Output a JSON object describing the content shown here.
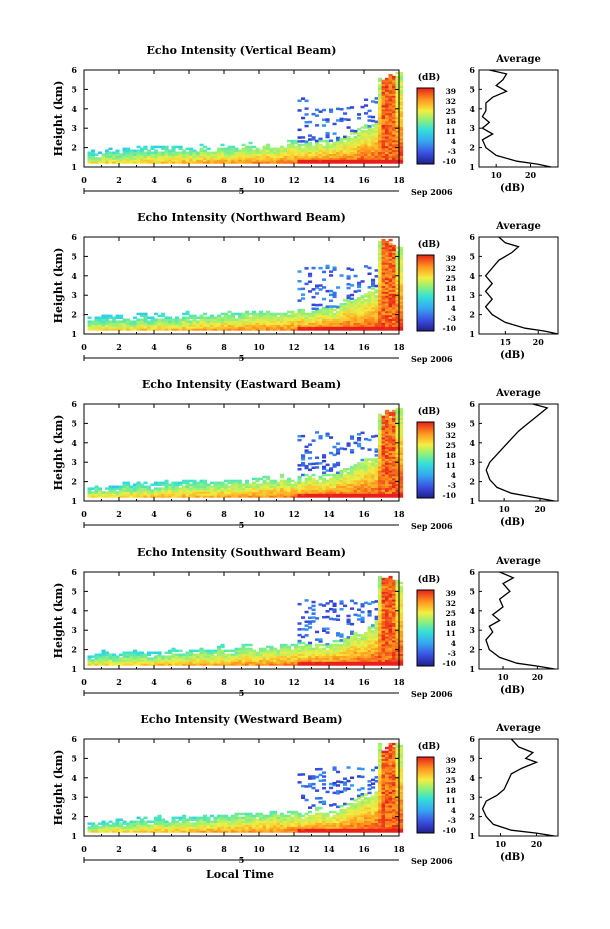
{
  "common": {
    "xlabel": "Local Time",
    "ylabel": "Height (km)",
    "xticks": [
      "0",
      "2",
      "4",
      "6",
      "8",
      "10",
      "12",
      "14",
      "16",
      "18"
    ],
    "yticks": [
      "1",
      "2",
      "3",
      "4",
      "5",
      "6"
    ],
    "date_day": "5",
    "date_label": "Sep 2006",
    "colorbar_title": "(dB)",
    "colorbar_ticks": [
      "39",
      "32",
      "25",
      "18",
      "11",
      "4",
      "-3",
      "-10"
    ],
    "avg_title": "Average",
    "avg_xlabel": "(dB)"
  },
  "chart_data": [
    {
      "type": "heatmap",
      "title": "Echo Intensity (Vertical Beam)",
      "xlim": [
        0,
        18
      ],
      "ylim": [
        1,
        6
      ],
      "color_range": [
        -10,
        39
      ],
      "average": {
        "type": "line",
        "title": "Average",
        "xticks": [
          "10",
          "20"
        ],
        "xlim": [
          5,
          28
        ],
        "profile": [
          [
            26,
            1
          ],
          [
            22,
            1.15
          ],
          [
            16,
            1.3
          ],
          [
            10,
            1.6
          ],
          [
            7,
            2.0
          ],
          [
            6,
            2.4
          ],
          [
            9,
            2.7
          ],
          [
            6,
            3.0
          ],
          [
            8,
            3.3
          ],
          [
            6,
            3.6
          ],
          [
            7,
            3.9
          ],
          [
            7,
            4.3
          ],
          [
            9,
            4.6
          ],
          [
            13,
            4.9
          ],
          [
            10,
            5.2
          ],
          [
            12,
            5.5
          ],
          [
            13,
            5.8
          ],
          [
            8,
            6.0
          ]
        ]
      }
    },
    {
      "type": "heatmap",
      "title": "Echo Intensity (Northward Beam)",
      "xlim": [
        0,
        18
      ],
      "ylim": [
        1,
        6
      ],
      "color_range": [
        -10,
        39
      ],
      "average": {
        "type": "line",
        "title": "Average",
        "xticks": [
          "15",
          "20"
        ],
        "xlim": [
          11,
          23
        ],
        "profile": [
          [
            23,
            1
          ],
          [
            21,
            1.15
          ],
          [
            18,
            1.3
          ],
          [
            15,
            1.6
          ],
          [
            13,
            2.0
          ],
          [
            12,
            2.4
          ],
          [
            13,
            2.8
          ],
          [
            12,
            3.2
          ],
          [
            13,
            3.6
          ],
          [
            12,
            4.0
          ],
          [
            13,
            4.4
          ],
          [
            14,
            4.8
          ],
          [
            16,
            5.2
          ],
          [
            17,
            5.5
          ],
          [
            15,
            5.7
          ],
          [
            14,
            6.0
          ]
        ]
      }
    },
    {
      "type": "heatmap",
      "title": "Echo Intensity (Eastward Beam)",
      "xlim": [
        0,
        18
      ],
      "ylim": [
        1,
        6
      ],
      "color_range": [
        -10,
        39
      ],
      "average": {
        "type": "line",
        "title": "Average",
        "xticks": [
          "10",
          "20"
        ],
        "xlim": [
          3,
          25
        ],
        "profile": [
          [
            24,
            1
          ],
          [
            18,
            1.2
          ],
          [
            12,
            1.4
          ],
          [
            8,
            1.7
          ],
          [
            6,
            2.1
          ],
          [
            5,
            2.6
          ],
          [
            6,
            3.0
          ],
          [
            8,
            3.4
          ],
          [
            10,
            3.8
          ],
          [
            12,
            4.2
          ],
          [
            14,
            4.6
          ],
          [
            16,
            4.9
          ],
          [
            18,
            5.2
          ],
          [
            20,
            5.5
          ],
          [
            22,
            5.8
          ],
          [
            18,
            6.0
          ]
        ]
      }
    },
    {
      "type": "heatmap",
      "title": "Echo Intensity (Southward Beam)",
      "xlim": [
        0,
        18
      ],
      "ylim": [
        1,
        6
      ],
      "color_range": [
        -10,
        39
      ],
      "average": {
        "type": "line",
        "title": "Average",
        "xticks": [
          "10",
          "20"
        ],
        "xlim": [
          3,
          26
        ],
        "profile": [
          [
            25,
            1
          ],
          [
            20,
            1.15
          ],
          [
            14,
            1.3
          ],
          [
            9,
            1.6
          ],
          [
            6,
            2.0
          ],
          [
            5,
            2.5
          ],
          [
            7,
            2.9
          ],
          [
            6,
            3.2
          ],
          [
            9,
            3.5
          ],
          [
            7,
            3.8
          ],
          [
            10,
            4.2
          ],
          [
            9,
            4.6
          ],
          [
            12,
            5.0
          ],
          [
            10,
            5.4
          ],
          [
            13,
            5.7
          ],
          [
            9,
            6.0
          ]
        ]
      }
    },
    {
      "type": "heatmap",
      "title": "Echo Intensity (Westward Beam)",
      "xlim": [
        0,
        18
      ],
      "ylim": [
        1,
        6
      ],
      "color_range": [
        -10,
        39
      ],
      "average": {
        "type": "line",
        "title": "Average",
        "xticks": [
          "10",
          "20"
        ],
        "xlim": [
          4,
          26
        ],
        "profile": [
          [
            25,
            1
          ],
          [
            20,
            1.15
          ],
          [
            13,
            1.3
          ],
          [
            8,
            1.6
          ],
          [
            6,
            2.0
          ],
          [
            5,
            2.4
          ],
          [
            6,
            2.8
          ],
          [
            9,
            3.1
          ],
          [
            11,
            3.4
          ],
          [
            12,
            3.8
          ],
          [
            13,
            4.2
          ],
          [
            16,
            4.5
          ],
          [
            20,
            4.8
          ],
          [
            17,
            5.0
          ],
          [
            19,
            5.3
          ],
          [
            15,
            5.6
          ],
          [
            13,
            6.0
          ]
        ]
      }
    }
  ]
}
